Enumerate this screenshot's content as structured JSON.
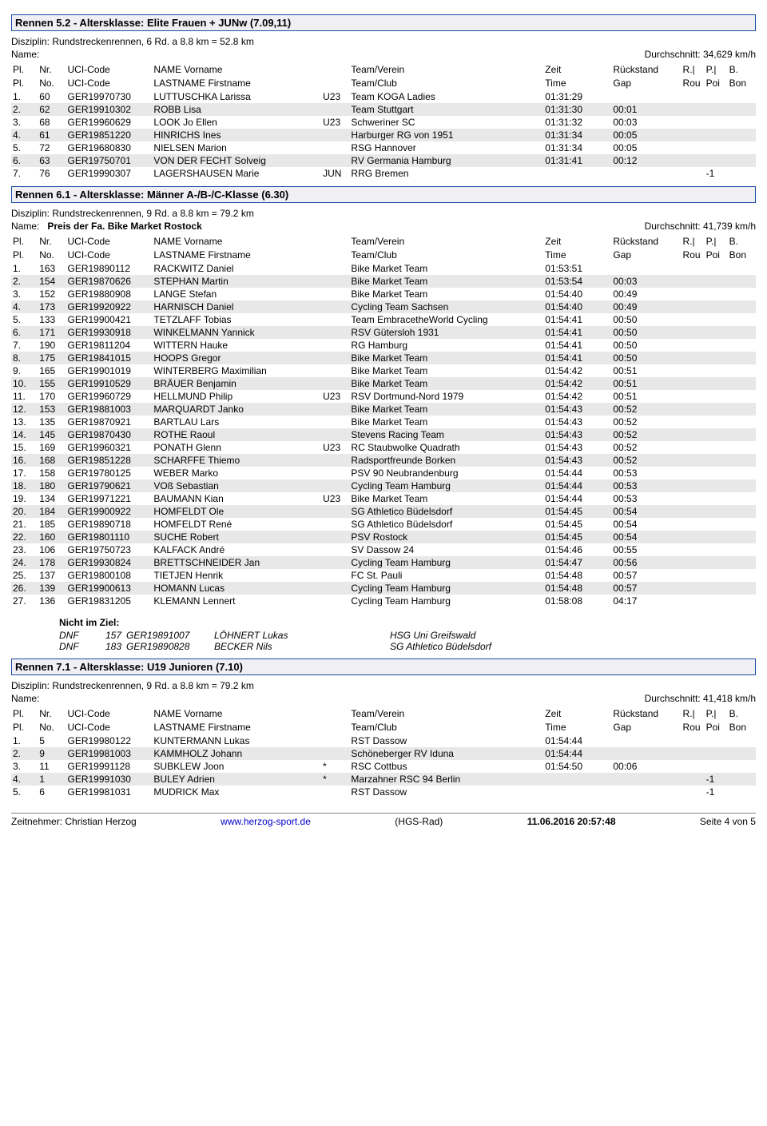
{
  "races": [
    {
      "title": "Rennen 5.2 - Altersklasse: Elite Frauen + JUNw (7.09,11)",
      "disziplin": "Disziplin: Rundstreckenrennen, 6 Rd. a 8.8 km = 52.8 km",
      "name_label": "Name:",
      "name_value": "",
      "durchschnitt": "Durchschnitt: 34,629 km/h",
      "rows": [
        {
          "pl": "1.",
          "nr": "60",
          "uci": "GER19970730",
          "name": "LUTTUSCHKA Larissa",
          "cat": "U23",
          "team": "Team KOGA Ladies",
          "zeit": "01:31:29",
          "gap": "",
          "r": "",
          "p": "",
          "b": ""
        },
        {
          "pl": "2.",
          "nr": "62",
          "uci": "GER19910302",
          "name": "ROBB Lisa",
          "cat": "",
          "team": "Team Stuttgart",
          "zeit": "01:31:30",
          "gap": "00:01",
          "r": "",
          "p": "",
          "b": ""
        },
        {
          "pl": "3.",
          "nr": "68",
          "uci": "GER19960629",
          "name": "LOOK Jo Ellen",
          "cat": "U23",
          "team": "Schweriner SC",
          "zeit": "01:31:32",
          "gap": "00:03",
          "r": "",
          "p": "",
          "b": ""
        },
        {
          "pl": "4.",
          "nr": "61",
          "uci": "GER19851220",
          "name": "HINRICHS Ines",
          "cat": "",
          "team": "Harburger RG von 1951",
          "zeit": "01:31:34",
          "gap": "00:05",
          "r": "",
          "p": "",
          "b": ""
        },
        {
          "pl": "5.",
          "nr": "72",
          "uci": "GER19680830",
          "name": "NIELSEN Marion",
          "cat": "",
          "team": "RSG Hannover",
          "zeit": "01:31:34",
          "gap": "00:05",
          "r": "",
          "p": "",
          "b": ""
        },
        {
          "pl": "6.",
          "nr": "63",
          "uci": "GER19750701",
          "name": "VON DER FECHT Solveig",
          "cat": "",
          "team": "RV Germania Hamburg",
          "zeit": "01:31:41",
          "gap": "00:12",
          "r": "",
          "p": "",
          "b": ""
        },
        {
          "pl": "7.",
          "nr": "76",
          "uci": "GER19990307",
          "name": "LAGERSHAUSEN Marie",
          "cat": "JUN",
          "team": "RRG Bremen",
          "zeit": "",
          "gap": "",
          "r": "",
          "p": "-1",
          "b": ""
        }
      ],
      "dnf": null
    },
    {
      "title": "Rennen 6.1 - Altersklasse: Männer A-/B-/C-Klasse (6.30)",
      "disziplin": "Disziplin: Rundstreckenrennen, 9 Rd. a 8.8 km = 79.2 km",
      "name_label": "Name:",
      "name_value": "Preis der Fa. Bike Market Rostock",
      "durchschnitt": "Durchschnitt: 41,739 km/h",
      "rows": [
        {
          "pl": "1.",
          "nr": "163",
          "uci": "GER19890112",
          "name": "RACKWITZ Daniel",
          "cat": "",
          "team": "Bike Market Team",
          "zeit": "01:53:51",
          "gap": "",
          "r": "",
          "p": "",
          "b": ""
        },
        {
          "pl": "2.",
          "nr": "154",
          "uci": "GER19870626",
          "name": "STEPHAN Martin",
          "cat": "",
          "team": "Bike Market Team",
          "zeit": "01:53:54",
          "gap": "00:03",
          "r": "",
          "p": "",
          "b": ""
        },
        {
          "pl": "3.",
          "nr": "152",
          "uci": "GER19880908",
          "name": "LANGE Stefan",
          "cat": "",
          "team": "Bike Market Team",
          "zeit": "01:54:40",
          "gap": "00:49",
          "r": "",
          "p": "",
          "b": ""
        },
        {
          "pl": "4.",
          "nr": "173",
          "uci": "GER19920922",
          "name": "HARNISCH Daniel",
          "cat": "",
          "team": "Cycling Team Sachsen",
          "zeit": "01:54:40",
          "gap": "00:49",
          "r": "",
          "p": "",
          "b": ""
        },
        {
          "pl": "5.",
          "nr": "133",
          "uci": "GER19900421",
          "name": "TETZLAFF Tobias",
          "cat": "",
          "team": "Team EmbracetheWorld Cycling",
          "zeit": "01:54:41",
          "gap": "00:50",
          "r": "",
          "p": "",
          "b": ""
        },
        {
          "pl": "6.",
          "nr": "171",
          "uci": "GER19930918",
          "name": "WINKELMANN Yannick",
          "cat": "",
          "team": "RSV Gütersloh 1931",
          "zeit": "01:54:41",
          "gap": "00:50",
          "r": "",
          "p": "",
          "b": ""
        },
        {
          "pl": "7.",
          "nr": "190",
          "uci": "GER19811204",
          "name": "WITTERN Hauke",
          "cat": "",
          "team": "RG Hamburg",
          "zeit": "01:54:41",
          "gap": "00:50",
          "r": "",
          "p": "",
          "b": ""
        },
        {
          "pl": "8.",
          "nr": "175",
          "uci": "GER19841015",
          "name": "HOOPS Gregor",
          "cat": "",
          "team": "Bike Market Team",
          "zeit": "01:54:41",
          "gap": "00:50",
          "r": "",
          "p": "",
          "b": ""
        },
        {
          "pl": "9.",
          "nr": "165",
          "uci": "GER19901019",
          "name": "WINTERBERG Maximilian",
          "cat": "",
          "team": "Bike Market Team",
          "zeit": "01:54:42",
          "gap": "00:51",
          "r": "",
          "p": "",
          "b": ""
        },
        {
          "pl": "10.",
          "nr": "155",
          "uci": "GER19910529",
          "name": "BRÄUER Benjamin",
          "cat": "",
          "team": "Bike Market Team",
          "zeit": "01:54:42",
          "gap": "00:51",
          "r": "",
          "p": "",
          "b": ""
        },
        {
          "pl": "11.",
          "nr": "170",
          "uci": "GER19960729",
          "name": "HELLMUND Philip",
          "cat": "U23",
          "team": "RSV Dortmund-Nord 1979",
          "zeit": "01:54:42",
          "gap": "00:51",
          "r": "",
          "p": "",
          "b": ""
        },
        {
          "pl": "12.",
          "nr": "153",
          "uci": "GER19881003",
          "name": "MARQUARDT Janko",
          "cat": "",
          "team": "Bike Market Team",
          "zeit": "01:54:43",
          "gap": "00:52",
          "r": "",
          "p": "",
          "b": ""
        },
        {
          "pl": "13.",
          "nr": "135",
          "uci": "GER19870921",
          "name": "BARTLAU Lars",
          "cat": "",
          "team": "Bike Market Team",
          "zeit": "01:54:43",
          "gap": "00:52",
          "r": "",
          "p": "",
          "b": ""
        },
        {
          "pl": "14.",
          "nr": "145",
          "uci": "GER19870430",
          "name": "ROTHE Raoul",
          "cat": "",
          "team": "Stevens Racing Team",
          "zeit": "01:54:43",
          "gap": "00:52",
          "r": "",
          "p": "",
          "b": ""
        },
        {
          "pl": "15.",
          "nr": "169",
          "uci": "GER19960321",
          "name": "PONATH Glenn",
          "cat": "U23",
          "team": "RC Staubwolke Quadrath",
          "zeit": "01:54:43",
          "gap": "00:52",
          "r": "",
          "p": "",
          "b": ""
        },
        {
          "pl": "16.",
          "nr": "168",
          "uci": "GER19851228",
          "name": "SCHARFFE Thiemo",
          "cat": "",
          "team": "Radsportfreunde Borken",
          "zeit": "01:54:43",
          "gap": "00:52",
          "r": "",
          "p": "",
          "b": ""
        },
        {
          "pl": "17.",
          "nr": "158",
          "uci": "GER19780125",
          "name": "WEBER Marko",
          "cat": "",
          "team": "PSV 90 Neubrandenburg",
          "zeit": "01:54:44",
          "gap": "00:53",
          "r": "",
          "p": "",
          "b": ""
        },
        {
          "pl": "18.",
          "nr": "180",
          "uci": "GER19790621",
          "name": "VOß Sebastian",
          "cat": "",
          "team": "Cycling Team Hamburg",
          "zeit": "01:54:44",
          "gap": "00:53",
          "r": "",
          "p": "",
          "b": ""
        },
        {
          "pl": "19.",
          "nr": "134",
          "uci": "GER19971221",
          "name": "BAUMANN Kian",
          "cat": "U23",
          "team": "Bike Market Team",
          "zeit": "01:54:44",
          "gap": "00:53",
          "r": "",
          "p": "",
          "b": ""
        },
        {
          "pl": "20.",
          "nr": "184",
          "uci": "GER19900922",
          "name": "HOMFELDT Ole",
          "cat": "",
          "team": "SG Athletico Büdelsdorf",
          "zeit": "01:54:45",
          "gap": "00:54",
          "r": "",
          "p": "",
          "b": ""
        },
        {
          "pl": "21.",
          "nr": "185",
          "uci": "GER19890718",
          "name": "HOMFELDT René",
          "cat": "",
          "team": "SG Athletico Büdelsdorf",
          "zeit": "01:54:45",
          "gap": "00:54",
          "r": "",
          "p": "",
          "b": ""
        },
        {
          "pl": "22.",
          "nr": "160",
          "uci": "GER19801110",
          "name": "SUCHE Robert",
          "cat": "",
          "team": "PSV Rostock",
          "zeit": "01:54:45",
          "gap": "00:54",
          "r": "",
          "p": "",
          "b": ""
        },
        {
          "pl": "23.",
          "nr": "106",
          "uci": "GER19750723",
          "name": "KALFACK André",
          "cat": "",
          "team": "SV Dassow 24",
          "zeit": "01:54:46",
          "gap": "00:55",
          "r": "",
          "p": "",
          "b": ""
        },
        {
          "pl": "24.",
          "nr": "178",
          "uci": "GER19930824",
          "name": "BRETTSCHNEIDER Jan",
          "cat": "",
          "team": "Cycling Team Hamburg",
          "zeit": "01:54:47",
          "gap": "00:56",
          "r": "",
          "p": "",
          "b": ""
        },
        {
          "pl": "25.",
          "nr": "137",
          "uci": "GER19800108",
          "name": "TIETJEN Henrik",
          "cat": "",
          "team": "FC St. Pauli",
          "zeit": "01:54:48",
          "gap": "00:57",
          "r": "",
          "p": "",
          "b": ""
        },
        {
          "pl": "26.",
          "nr": "139",
          "uci": "GER19900613",
          "name": "HOMANN Lucas",
          "cat": "",
          "team": "Cycling Team Hamburg",
          "zeit": "01:54:48",
          "gap": "00:57",
          "r": "",
          "p": "",
          "b": ""
        },
        {
          "pl": "27.",
          "nr": "136",
          "uci": "GER19831205",
          "name": "KLEMANN Lennert",
          "cat": "",
          "team": "Cycling Team Hamburg",
          "zeit": "01:58:08",
          "gap": "04:17",
          "r": "",
          "p": "",
          "b": ""
        }
      ],
      "dnf": {
        "title": "Nicht im Ziel:",
        "entries": [
          {
            "code": "DNF",
            "nr": "157",
            "uci": "GER19891007",
            "name": "LÖHNERT Lukas",
            "team": "HSG Uni Greifswald"
          },
          {
            "code": "DNF",
            "nr": "183",
            "uci": "GER19890828",
            "name": "BECKER Nils",
            "team": "SG Athletico Büdelsdorf"
          }
        ]
      }
    },
    {
      "title": "Rennen 7.1 - Altersklasse: U19 Junioren (7.10)",
      "disziplin": "Disziplin: Rundstreckenrennen, 9 Rd. a 8.8 km = 79.2 km",
      "name_label": "Name:",
      "name_value": "",
      "durchschnitt": "Durchschnitt: 41,418 km/h",
      "rows": [
        {
          "pl": "1.",
          "nr": "5",
          "uci": "GER19980122",
          "name": "KUNTERMANN Lukas",
          "cat": "",
          "team": "RST Dassow",
          "zeit": "01:54:44",
          "gap": "",
          "r": "",
          "p": "",
          "b": ""
        },
        {
          "pl": "2.",
          "nr": "9",
          "uci": "GER19981003",
          "name": "KAMMHOLZ Johann",
          "cat": "",
          "team": "Schöneberger RV Iduna",
          "zeit": "01:54:44",
          "gap": "",
          "r": "",
          "p": "",
          "b": ""
        },
        {
          "pl": "3.",
          "nr": "11",
          "uci": "GER19991128",
          "name": "SUBKLEW Joon",
          "cat": "*",
          "team": "RSC Cottbus",
          "zeit": "01:54:50",
          "gap": "00:06",
          "r": "",
          "p": "",
          "b": ""
        },
        {
          "pl": "4.",
          "nr": "1",
          "uci": "GER19991030",
          "name": "BULEY Adrien",
          "cat": "*",
          "team": "Marzahner RSC 94 Berlin",
          "zeit": "",
          "gap": "",
          "r": "",
          "p": "-1",
          "b": ""
        },
        {
          "pl": "5.",
          "nr": "6",
          "uci": "GER19981031",
          "name": "MUDRICK Max",
          "cat": "",
          "team": "RST Dassow",
          "zeit": "",
          "gap": "",
          "r": "",
          "p": "-1",
          "b": ""
        }
      ],
      "dnf": null
    }
  ],
  "headers": {
    "pl1": "Pl.",
    "nr1": "Nr.",
    "uci1": "UCI-Code",
    "name1": "NAME Vorname",
    "team1": "Team/Verein",
    "zeit1": "Zeit",
    "gap1": "Rückstand",
    "r1": "R.|",
    "p1": "P.|",
    "b1": "B.",
    "pl2": "Pl.",
    "nr2": "No.",
    "uci2": "UCI-Code",
    "name2": "LASTNAME Firstname",
    "team2": "Team/Club",
    "zeit2": "Time",
    "gap2": "Gap",
    "r2": "Rou",
    "p2": "Poi",
    "b2": "Bon"
  },
  "footer": {
    "left": "Zeitnehmer: Christian Herzog",
    "link": "www.herzog-sport.de",
    "mid": "(HGS-Rad)",
    "dt": "11.06.2016 20:57:48",
    "page": "Seite 4 von 5"
  }
}
